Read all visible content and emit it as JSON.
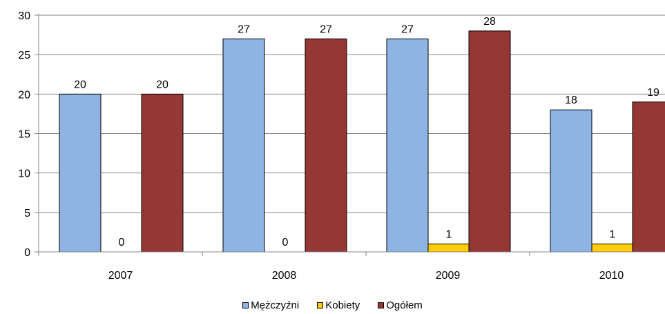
{
  "chart_data": {
    "type": "bar",
    "categories": [
      "2007",
      "2008",
      "2009",
      "2010"
    ],
    "series": [
      {
        "name": "Mężczyźni",
        "values": [
          20,
          27,
          27,
          18
        ],
        "color": "#8EB4E3"
      },
      {
        "name": "Kobiety",
        "values": [
          0,
          0,
          1,
          1
        ],
        "color": "#FFCC00"
      },
      {
        "name": "Ogółem",
        "values": [
          20,
          27,
          28,
          19
        ],
        "color": "#953735"
      }
    ],
    "yticks": [
      "0",
      "5",
      "10",
      "15",
      "20",
      "25",
      "30"
    ],
    "ylim": [
      0,
      30
    ],
    "title": "",
    "xlabel": "",
    "ylabel": "",
    "grid": true,
    "legend_position": "bottom",
    "data_labels": true
  }
}
